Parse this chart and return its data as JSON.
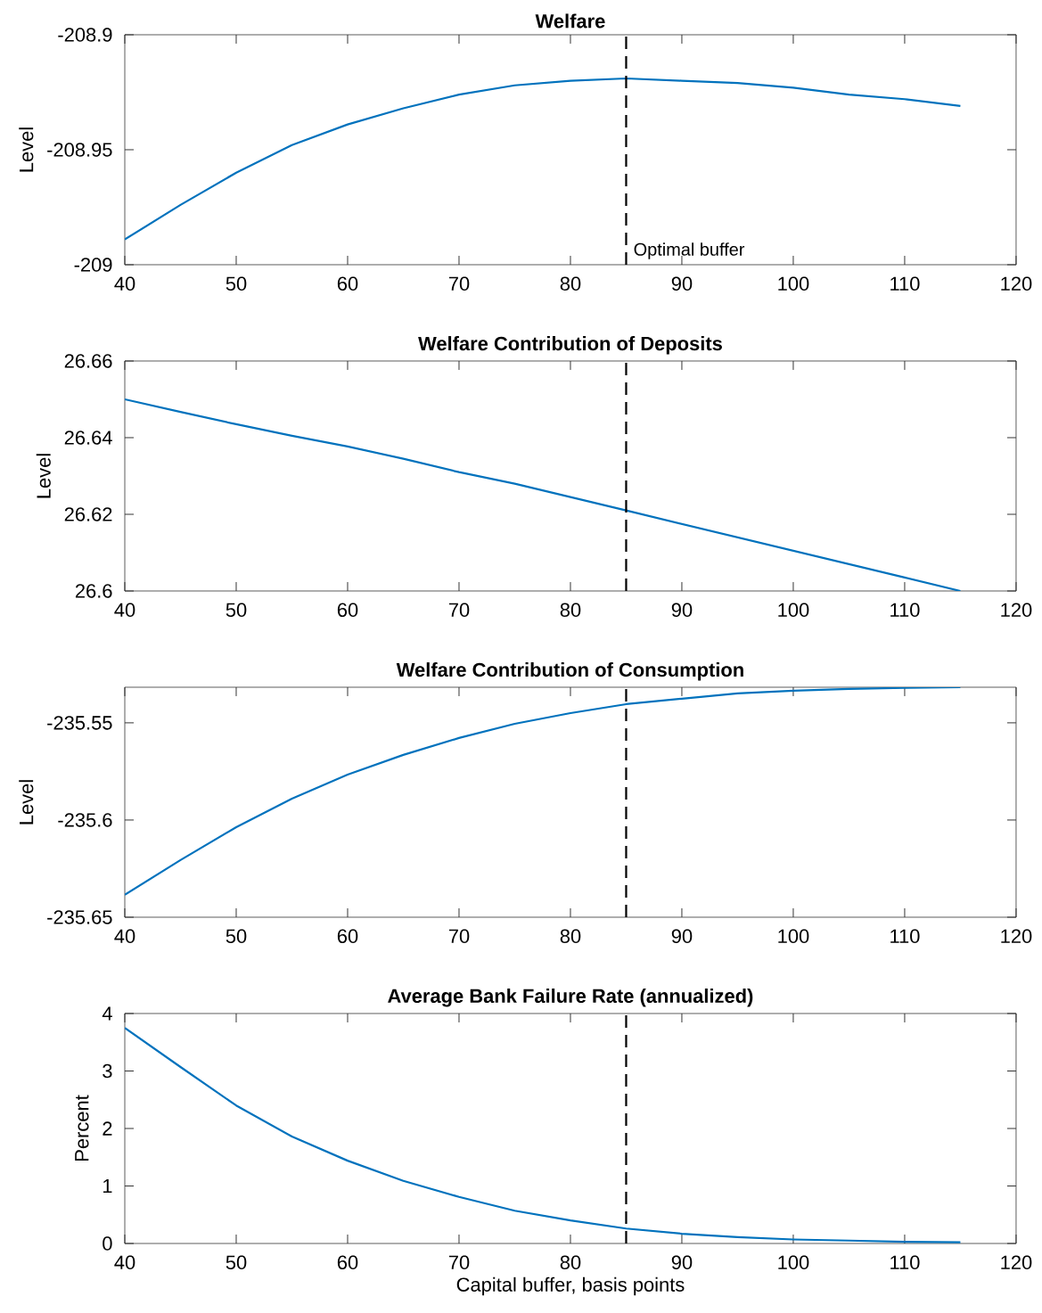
{
  "chart_data": [
    {
      "type": "line",
      "title": "Welfare",
      "ylabel": "Level",
      "x": [
        40,
        45,
        50,
        55,
        60,
        65,
        70,
        75,
        80,
        85,
        90,
        95,
        100,
        105,
        110,
        115
      ],
      "series": [
        {
          "color": "#0072bd",
          "values": [
            -208.989,
            -208.974,
            -208.96,
            -208.948,
            -208.939,
            -208.932,
            -208.926,
            -208.922,
            -208.92,
            -208.919,
            -208.92,
            -208.921,
            -208.923,
            -208.926,
            -208.928,
            -208.931
          ]
        }
      ],
      "xlim": [
        40,
        120
      ],
      "ylim": [
        -209,
        -208.9
      ],
      "xticks": [
        40,
        50,
        60,
        70,
        80,
        90,
        100,
        110,
        120
      ],
      "yticks": [
        -209,
        -208.95,
        -208.9
      ],
      "ref_lines": [
        {
          "axis": "x",
          "value": 85,
          "label": "Optimal buffer",
          "color": "#000000",
          "line_style": "dashed"
        }
      ]
    },
    {
      "type": "line",
      "title": "Welfare Contribution of Deposits",
      "ylabel": "Level",
      "x": [
        40,
        45,
        50,
        55,
        60,
        65,
        70,
        75,
        80,
        85,
        90,
        95,
        100,
        105,
        110,
        115
      ],
      "series": [
        {
          "color": "#0072bd",
          "values": [
            26.65,
            26.6467,
            26.6435,
            26.6405,
            26.6377,
            26.6345,
            26.631,
            26.628,
            26.6245,
            26.621,
            26.6175,
            26.614,
            26.6105,
            26.607,
            26.6035,
            26.6
          ]
        }
      ],
      "xlim": [
        40,
        120
      ],
      "ylim": [
        26.6,
        26.66
      ],
      "xticks": [
        40,
        50,
        60,
        70,
        80,
        90,
        100,
        110,
        120
      ],
      "yticks": [
        26.6,
        26.62,
        26.64,
        26.66
      ],
      "ref_lines": [
        {
          "axis": "x",
          "value": 85,
          "color": "#000000",
          "line_style": "dashed"
        }
      ]
    },
    {
      "type": "line",
      "title": "Welfare Contribution of Consumption",
      "ylabel": "Level",
      "x": [
        40,
        45,
        50,
        55,
        60,
        65,
        70,
        75,
        80,
        85,
        90,
        95,
        100,
        105,
        110,
        115
      ],
      "series": [
        {
          "color": "#0072bd",
          "values": [
            -235.6385,
            -235.6206,
            -235.6037,
            -235.589,
            -235.5766,
            -235.5665,
            -235.5578,
            -235.5505,
            -235.545,
            -235.5404,
            -235.5376,
            -235.5349,
            -235.5335,
            -235.5326,
            -235.532,
            -235.5317
          ]
        }
      ],
      "xlim": [
        40,
        120
      ],
      "ylim": [
        -235.65,
        -235.5317
      ],
      "xticks": [
        40,
        50,
        60,
        70,
        80,
        90,
        100,
        110,
        120
      ],
      "yticks": [
        -235.65,
        -235.6,
        -235.55
      ],
      "ref_lines": [
        {
          "axis": "x",
          "value": 85,
          "color": "#000000",
          "line_style": "dashed"
        }
      ]
    },
    {
      "type": "line",
      "title": "Average Bank Failure Rate (annualized)",
      "ylabel": "Percent",
      "xlabel": "Capital buffer, basis points",
      "x": [
        40,
        45,
        50,
        55,
        60,
        65,
        70,
        75,
        80,
        85,
        90,
        95,
        100,
        105,
        110,
        115
      ],
      "series": [
        {
          "color": "#0072bd",
          "values": [
            3.75,
            3.07,
            2.4,
            1.86,
            1.44,
            1.09,
            0.81,
            0.57,
            0.4,
            0.26,
            0.17,
            0.11,
            0.07,
            0.05,
            0.03,
            0.02
          ]
        }
      ],
      "xlim": [
        40,
        120
      ],
      "ylim": [
        0,
        4
      ],
      "xticks": [
        40,
        50,
        60,
        70,
        80,
        90,
        100,
        110,
        120
      ],
      "yticks": [
        0,
        1,
        2,
        3,
        4
      ],
      "ref_lines": [
        {
          "axis": "x",
          "value": 85,
          "color": "#000000",
          "line_style": "dashed"
        }
      ]
    }
  ]
}
